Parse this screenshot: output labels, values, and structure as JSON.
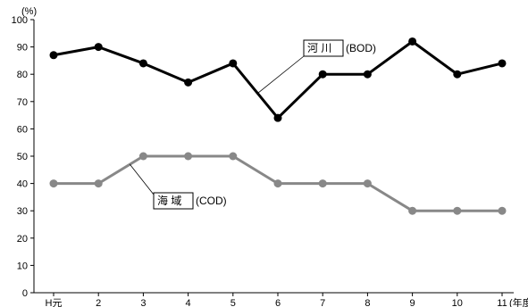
{
  "chart_data": {
    "type": "line",
    "categories": [
      "H元",
      "2",
      "3",
      "4",
      "5",
      "6",
      "7",
      "8",
      "9",
      "10",
      "11"
    ],
    "x_unit": "(年度)",
    "y_unit": "(%)",
    "ylim": [
      0,
      100
    ],
    "y_ticks": [
      0,
      10,
      20,
      30,
      40,
      50,
      60,
      70,
      80,
      90,
      100
    ],
    "grid": false,
    "series": [
      {
        "name": "河 川",
        "suffix": "(BOD)",
        "color": "#000000",
        "values": [
          87,
          90,
          84,
          77,
          84,
          64,
          80,
          80,
          92,
          80,
          84
        ]
      },
      {
        "name": "海 域",
        "suffix": "(COD)",
        "color": "#888888",
        "values": [
          40,
          40,
          50,
          50,
          50,
          40,
          40,
          40,
          30,
          30,
          30
        ]
      }
    ]
  }
}
